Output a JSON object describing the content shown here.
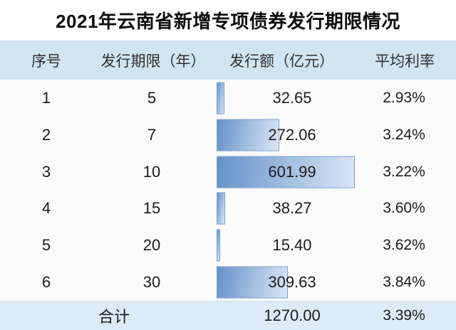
{
  "title": "2021年云南省新增专项债券发行期限情况",
  "table": {
    "headers": [
      "序号",
      "发行期限（年）",
      "发行额（亿元）",
      "平均利率"
    ],
    "rows": [
      {
        "no": "1",
        "term": "5",
        "amount": 32.65,
        "amount_text": "32.65",
        "rate": "2.93%"
      },
      {
        "no": "2",
        "term": "7",
        "amount": 272.06,
        "amount_text": "272.06",
        "rate": "3.24%"
      },
      {
        "no": "3",
        "term": "10",
        "amount": 601.99,
        "amount_text": "601.99",
        "rate": "3.22%"
      },
      {
        "no": "4",
        "term": "15",
        "amount": 38.27,
        "amount_text": "38.27",
        "rate": "3.60%"
      },
      {
        "no": "5",
        "term": "20",
        "amount": 15.4,
        "amount_text": "15.40",
        "rate": "3.62%"
      },
      {
        "no": "6",
        "term": "30",
        "amount": 309.63,
        "amount_text": "309.63",
        "rate": "3.84%"
      }
    ],
    "footer": {
      "label": "合计",
      "amount_text": "1270.00",
      "rate": "3.39%"
    }
  },
  "chart_data": {
    "type": "bar",
    "orientation": "horizontal",
    "title": "2021年云南省新增专项债券发行期限情况",
    "categories": [
      "5",
      "7",
      "10",
      "15",
      "20",
      "30"
    ],
    "xlabel": "发行期限（年）",
    "series": [
      {
        "name": "发行额（亿元）",
        "values": [
          32.65,
          272.06,
          601.99,
          38.27,
          15.4,
          309.63
        ]
      },
      {
        "name": "平均利率",
        "values": [
          2.93,
          3.24,
          3.22,
          3.6,
          3.62,
          3.84
        ],
        "unit": "%"
      }
    ],
    "totals": {
      "发行额（亿元）": 1270.0,
      "平均利率": "3.39%"
    },
    "legend": false,
    "note": "bars embedded in table cells, scaled so 601.99 = max width"
  },
  "colors": {
    "header_bg": "#d0e4f1",
    "footer_bg": "#dcebf7",
    "row_bg": "#fbfbfb",
    "bar_gradient_dark": "#6490cc",
    "bar_gradient_light": "#dbe6f6",
    "bar_border": "#7ba1cd",
    "text": "#1b1b1b"
  }
}
